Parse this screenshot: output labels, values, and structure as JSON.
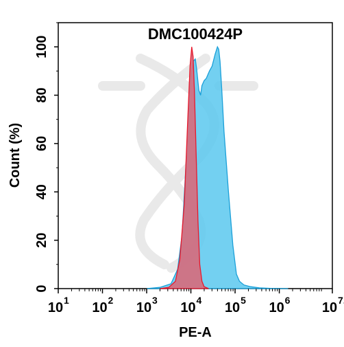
{
  "chart_data": {
    "type": "area",
    "title": "DMC100424P",
    "xlabel": "PE-A",
    "ylabel": "Count  (%)",
    "x_scale": "log10",
    "xlim": [
      1,
      7.2
    ],
    "ylim": [
      0,
      110
    ],
    "x_ticks": [
      {
        "base": "10",
        "exp": "1",
        "value": 1
      },
      {
        "base": "10",
        "exp": "2",
        "value": 2
      },
      {
        "base": "10",
        "exp": "3",
        "value": 3
      },
      {
        "base": "10",
        "exp": "4",
        "value": 4
      },
      {
        "base": "10",
        "exp": "5",
        "value": 5
      },
      {
        "base": "10",
        "exp": "6",
        "value": 6
      },
      {
        "base": "10",
        "exp": "7.2",
        "value": 7.2
      }
    ],
    "y_ticks": [
      0,
      20,
      40,
      60,
      80,
      100
    ],
    "grid": false,
    "series": [
      {
        "color": "#5bc8ef",
        "stroke": "#1a9fd8",
        "x": [
          3.0,
          3.3,
          3.55,
          3.7,
          3.8,
          3.9,
          3.98,
          4.05,
          4.1,
          4.13,
          4.18,
          4.22,
          4.25,
          4.3,
          4.35,
          4.42,
          4.48,
          4.55,
          4.6,
          4.63,
          4.66,
          4.7,
          4.75,
          4.85,
          4.95,
          5.03,
          5.1,
          5.2,
          5.35,
          5.55,
          5.8,
          6.2
        ],
        "values": [
          0,
          0.5,
          2,
          8,
          22,
          55,
          85,
          94,
          95,
          91,
          82,
          80,
          84,
          86,
          87,
          90,
          92,
          97,
          100,
          99,
          94,
          82,
          65,
          40,
          18,
          6,
          3,
          1.5,
          0.8,
          0.3,
          0.1,
          0
        ]
      },
      {
        "color": "#d56d7e",
        "stroke": "#e8192c",
        "x": [
          3.3,
          3.5,
          3.65,
          3.75,
          3.85,
          3.93,
          3.98,
          4.02,
          4.05,
          4.08,
          4.12,
          4.16,
          4.2,
          4.25,
          4.3,
          4.4
        ],
        "values": [
          0,
          0.5,
          3,
          12,
          35,
          70,
          92,
          100,
          96,
          82,
          55,
          28,
          10,
          3,
          0.8,
          0
        ]
      }
    ],
    "watermark": "dna-logo"
  }
}
